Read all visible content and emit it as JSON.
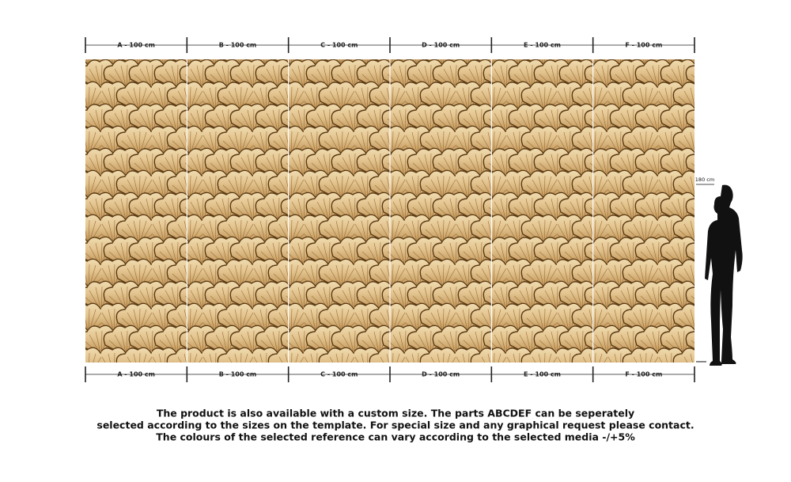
{
  "panels_top": [
    "A - 100 cm",
    "B - 100 cm",
    "C - 100 cm",
    "D - 100 cm",
    "E - 100 cm",
    "F - 100 cm"
  ],
  "panels_bottom": [
    "A - 100 cm",
    "B - 100 cm",
    "C - 100 cm",
    "D - 100 cm",
    "E - 100 cm",
    "F - 100 cm"
  ],
  "height_label": "180 cm",
  "description": [
    "The product is also available with a custom size. The parts ABCDEF can be seperately",
    "selected according to the sizes on the template. For special size and any graphical request please contact.",
    "The colours of the selected reference can vary according to the selected media -/+5%"
  ]
}
